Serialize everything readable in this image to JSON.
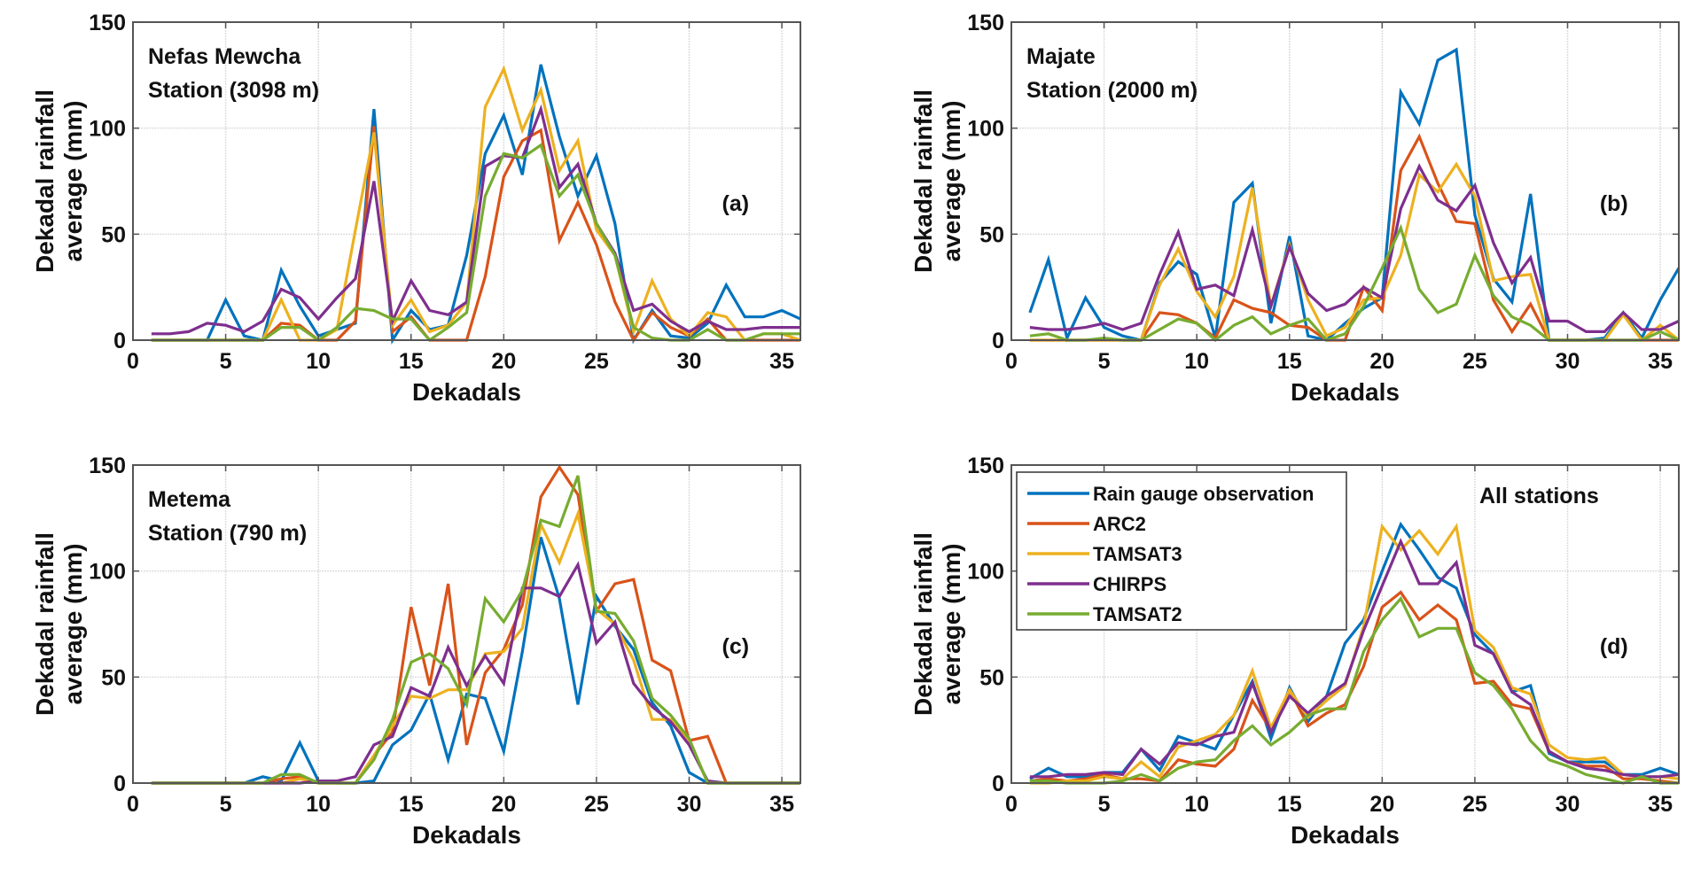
{
  "chart_data": [
    {
      "type": "line",
      "panel_label": "(a)",
      "station_name": "Nefas Mewcha",
      "station_elevation": "Station (3098 m)",
      "xlabel": "Dekadals",
      "ylabel_line1": "Dekadal rainfall",
      "ylabel_line2": "average (mm)",
      "xlim": [
        0,
        36
      ],
      "ylim": [
        0,
        150
      ],
      "xticks": [
        0,
        5,
        10,
        15,
        20,
        25,
        30,
        35
      ],
      "yticks": [
        0,
        50,
        100,
        150
      ],
      "grid": true,
      "x": [
        1,
        2,
        3,
        4,
        5,
        6,
        7,
        8,
        9,
        10,
        11,
        12,
        13,
        14,
        15,
        16,
        17,
        18,
        19,
        20,
        21,
        22,
        23,
        24,
        25,
        26,
        27,
        28,
        29,
        30,
        31,
        32,
        33,
        34,
        35,
        36
      ],
      "series": [
        {
          "name": "Rain gauge observation",
          "values": [
            0,
            0,
            0,
            0,
            19,
            2,
            0,
            33,
            16,
            2,
            5,
            8,
            109,
            0,
            14,
            5,
            7,
            40,
            88,
            106,
            78,
            130,
            96,
            68,
            87,
            55,
            0,
            14,
            2,
            1,
            8,
            26,
            11,
            11,
            14,
            10
          ]
        },
        {
          "name": "ARC2",
          "values": [
            0,
            0,
            0,
            0,
            0,
            0,
            0,
            8,
            7,
            0,
            0,
            9,
            101,
            4,
            11,
            0,
            0,
            0,
            30,
            77,
            94,
            99,
            47,
            65,
            45,
            18,
            0,
            13,
            6,
            2,
            10,
            0,
            0,
            0,
            0,
            0
          ]
        },
        {
          "name": "TAMSAT3",
          "values": [
            0,
            0,
            0,
            0,
            0,
            0,
            0,
            19,
            0,
            0,
            5,
            52,
            98,
            7,
            19,
            4,
            7,
            18,
            110,
            128,
            99,
            118,
            80,
            94,
            52,
            40,
            4,
            28,
            10,
            2,
            13,
            11,
            0,
            3,
            3,
            0
          ]
        },
        {
          "name": "CHIRPS",
          "values": [
            3,
            3,
            4,
            8,
            7,
            4,
            9,
            24,
            20,
            10,
            20,
            29,
            75,
            9,
            28,
            14,
            12,
            18,
            82,
            87,
            86,
            109,
            72,
            83,
            55,
            41,
            14,
            17,
            9,
            4,
            9,
            5,
            5,
            6,
            6,
            6
          ]
        },
        {
          "name": "TAMSAT2",
          "values": [
            0,
            0,
            0,
            0,
            0,
            0,
            0,
            6,
            6,
            0,
            6,
            15,
            14,
            10,
            10,
            0,
            6,
            13,
            68,
            88,
            86,
            92,
            68,
            78,
            55,
            40,
            6,
            1,
            0,
            0,
            5,
            0,
            0,
            3,
            3,
            3
          ]
        }
      ]
    },
    {
      "type": "line",
      "panel_label": "(b)",
      "station_name": "Majate",
      "station_elevation": "Station (2000 m)",
      "xlabel": "Dekadals",
      "ylabel_line1": "Dekadal rainfall",
      "ylabel_line2": "average (mm)",
      "xlim": [
        0,
        36
      ],
      "ylim": [
        0,
        150
      ],
      "xticks": [
        0,
        5,
        10,
        15,
        20,
        25,
        30,
        35
      ],
      "yticks": [
        0,
        50,
        100,
        150
      ],
      "grid": true,
      "x": [
        1,
        2,
        3,
        4,
        5,
        6,
        7,
        8,
        9,
        10,
        11,
        12,
        13,
        14,
        15,
        16,
        17,
        18,
        19,
        20,
        21,
        22,
        23,
        24,
        25,
        26,
        27,
        28,
        29,
        30,
        31,
        32,
        33,
        34,
        35,
        36
      ],
      "series": [
        {
          "name": "Rain gauge observation",
          "values": [
            13,
            38,
            1,
            20,
            6,
            2,
            0,
            27,
            37,
            31,
            1,
            65,
            74,
            8,
            49,
            2,
            0,
            8,
            15,
            20,
            117,
            102,
            132,
            137,
            59,
            29,
            18,
            69,
            0,
            0,
            0,
            1,
            13,
            1,
            19,
            34
          ]
        },
        {
          "name": "ARC2",
          "values": [
            0,
            0,
            0,
            0,
            0,
            0,
            0,
            13,
            12,
            8,
            1,
            19,
            15,
            13,
            7,
            6,
            0,
            0,
            25,
            14,
            80,
            96,
            74,
            56,
            55,
            19,
            4,
            17,
            0,
            0,
            0,
            0,
            0,
            0,
            0,
            0
          ]
        },
        {
          "name": "TAMSAT3",
          "values": [
            0,
            0,
            0,
            0,
            0,
            0,
            0,
            26,
            43,
            23,
            11,
            30,
            72,
            16,
            45,
            19,
            2,
            6,
            19,
            20,
            40,
            78,
            70,
            83,
            68,
            28,
            30,
            31,
            0,
            0,
            0,
            0,
            12,
            0,
            7,
            0
          ]
        },
        {
          "name": "CHIRPS",
          "values": [
            6,
            5,
            5,
            6,
            8,
            5,
            8,
            31,
            51,
            24,
            26,
            21,
            52,
            16,
            44,
            22,
            14,
            17,
            25,
            20,
            62,
            82,
            66,
            61,
            73,
            46,
            27,
            39,
            9,
            9,
            4,
            4,
            13,
            5,
            5,
            9
          ]
        },
        {
          "name": "TAMSAT2",
          "values": [
            2,
            3,
            0,
            0,
            1,
            0,
            0,
            5,
            10,
            8,
            0,
            7,
            11,
            3,
            7,
            10,
            0,
            3,
            16,
            34,
            53,
            24,
            13,
            17,
            40,
            21,
            11,
            7,
            0,
            0,
            0,
            0,
            0,
            0,
            4,
            0
          ]
        }
      ]
    },
    {
      "type": "line",
      "panel_label": "(c)",
      "station_name": "Metema",
      "station_elevation": "Station (790 m)",
      "xlabel": "Dekadals",
      "ylabel_line1": "Dekadal rainfall",
      "ylabel_line2": "average (mm)",
      "xlim": [
        0,
        36
      ],
      "ylim": [
        0,
        150
      ],
      "xticks": [
        0,
        5,
        10,
        15,
        20,
        25,
        30,
        35
      ],
      "yticks": [
        0,
        50,
        100,
        150
      ],
      "grid": true,
      "x": [
        1,
        2,
        3,
        4,
        5,
        6,
        7,
        8,
        9,
        10,
        11,
        12,
        13,
        14,
        15,
        16,
        17,
        18,
        19,
        20,
        21,
        22,
        23,
        24,
        25,
        26,
        27,
        28,
        29,
        30,
        31,
        32,
        33,
        34,
        35,
        36
      ],
      "series": [
        {
          "name": "Rain gauge observation",
          "values": [
            0,
            0,
            0,
            0,
            0,
            0,
            3,
            1,
            19,
            1,
            0,
            0,
            1,
            18,
            25,
            42,
            11,
            42,
            40,
            15,
            62,
            116,
            87,
            37,
            88,
            74,
            63,
            38,
            27,
            5,
            0,
            0,
            0,
            0,
            0,
            0
          ]
        },
        {
          "name": "ARC2",
          "values": [
            0,
            0,
            0,
            0,
            0,
            0,
            0,
            2,
            3,
            0,
            0,
            0,
            13,
            24,
            83,
            46,
            94,
            18,
            52,
            63,
            84,
            135,
            149,
            136,
            81,
            94,
            96,
            58,
            53,
            20,
            22,
            0,
            0,
            0,
            0,
            0
          ]
        },
        {
          "name": "TAMSAT3",
          "values": [
            0,
            0,
            0,
            0,
            0,
            0,
            0,
            0,
            2,
            0,
            0,
            0,
            13,
            27,
            41,
            40,
            44,
            44,
            61,
            62,
            73,
            122,
            104,
            127,
            82,
            75,
            58,
            30,
            30,
            20,
            0,
            0,
            0,
            0,
            0,
            0
          ]
        },
        {
          "name": "CHIRPS",
          "values": [
            0,
            0,
            0,
            0,
            0,
            0,
            0,
            0,
            0,
            1,
            1,
            3,
            18,
            22,
            45,
            41,
            64,
            46,
            60,
            47,
            92,
            92,
            88,
            103,
            66,
            76,
            47,
            36,
            29,
            18,
            1,
            0,
            0,
            0,
            0,
            0
          ]
        },
        {
          "name": "TAMSAT2",
          "values": [
            0,
            0,
            0,
            0,
            0,
            0,
            0,
            4,
            4,
            0,
            0,
            0,
            11,
            30,
            57,
            61,
            54,
            37,
            87,
            76,
            91,
            124,
            121,
            145,
            81,
            80,
            67,
            40,
            32,
            21,
            0,
            0,
            0,
            0,
            0,
            0
          ]
        }
      ]
    },
    {
      "type": "line",
      "panel_label": "(d)",
      "station_name": "All stations",
      "xlabel": "Dekadals",
      "ylabel_line1": "Dekadal rainfall",
      "ylabel_line2": "average (mm)",
      "xlim": [
        0,
        36
      ],
      "ylim": [
        0,
        150
      ],
      "xticks": [
        0,
        5,
        10,
        15,
        20,
        25,
        30,
        35
      ],
      "yticks": [
        0,
        50,
        100,
        150
      ],
      "grid": true,
      "legend": {
        "placement": "top-left",
        "entries": [
          "Rain gauge observation",
          "ARC2",
          "TAMSAT3",
          "CHIRPS",
          "TAMSAT2"
        ]
      },
      "x": [
        1,
        2,
        3,
        4,
        5,
        6,
        7,
        8,
        9,
        10,
        11,
        12,
        13,
        14,
        15,
        16,
        17,
        18,
        19,
        20,
        21,
        22,
        23,
        24,
        25,
        26,
        27,
        28,
        29,
        30,
        31,
        32,
        33,
        34,
        35,
        36
      ],
      "series": [
        {
          "name": "Rain gauge observation",
          "values": [
            2,
            7,
            3,
            3,
            5,
            5,
            16,
            6,
            22,
            19,
            16,
            32,
            48,
            21,
            45,
            29,
            41,
            66,
            77,
            100,
            122,
            110,
            97,
            92,
            70,
            61,
            43,
            46,
            14,
            10,
            10,
            10,
            4,
            4,
            7,
            4
          ]
        },
        {
          "name": "ARC2",
          "values": [
            1,
            2,
            1,
            2,
            4,
            2,
            2,
            1,
            11,
            9,
            8,
            16,
            39,
            25,
            44,
            27,
            33,
            37,
            55,
            83,
            90,
            77,
            84,
            77,
            47,
            48,
            37,
            35,
            15,
            10,
            8,
            8,
            2,
            2,
            1,
            0
          ]
        },
        {
          "name": "TAMSAT3",
          "values": [
            0,
            0,
            1,
            1,
            3,
            2,
            10,
            3,
            17,
            20,
            23,
            32,
            53,
            26,
            44,
            31,
            39,
            46,
            74,
            121,
            110,
            119,
            108,
            121,
            72,
            64,
            45,
            42,
            18,
            12,
            11,
            12,
            4,
            3,
            3,
            2
          ]
        },
        {
          "name": "CHIRPS",
          "values": [
            3,
            3,
            4,
            4,
            5,
            4,
            16,
            9,
            19,
            18,
            22,
            24,
            47,
            24,
            41,
            33,
            41,
            47,
            72,
            93,
            114,
            94,
            94,
            104,
            65,
            61,
            43,
            37,
            15,
            10,
            7,
            6,
            4,
            3,
            3,
            4
          ]
        },
        {
          "name": "TAMSAT2",
          "values": [
            1,
            1,
            0,
            0,
            0,
            1,
            4,
            1,
            7,
            10,
            11,
            20,
            27,
            18,
            24,
            32,
            35,
            35,
            62,
            77,
            87,
            69,
            73,
            73,
            52,
            46,
            35,
            20,
            11,
            8,
            4,
            2,
            0,
            3,
            0,
            0
          ]
        }
      ]
    }
  ],
  "colors": {
    "Rain gauge observation": "#0072BD",
    "ARC2": "#D95319",
    "TAMSAT3": "#EDB120",
    "CHIRPS": "#7E2F8E",
    "TAMSAT2": "#77AC30",
    "grid": "#dedede",
    "axis": "#555555"
  }
}
